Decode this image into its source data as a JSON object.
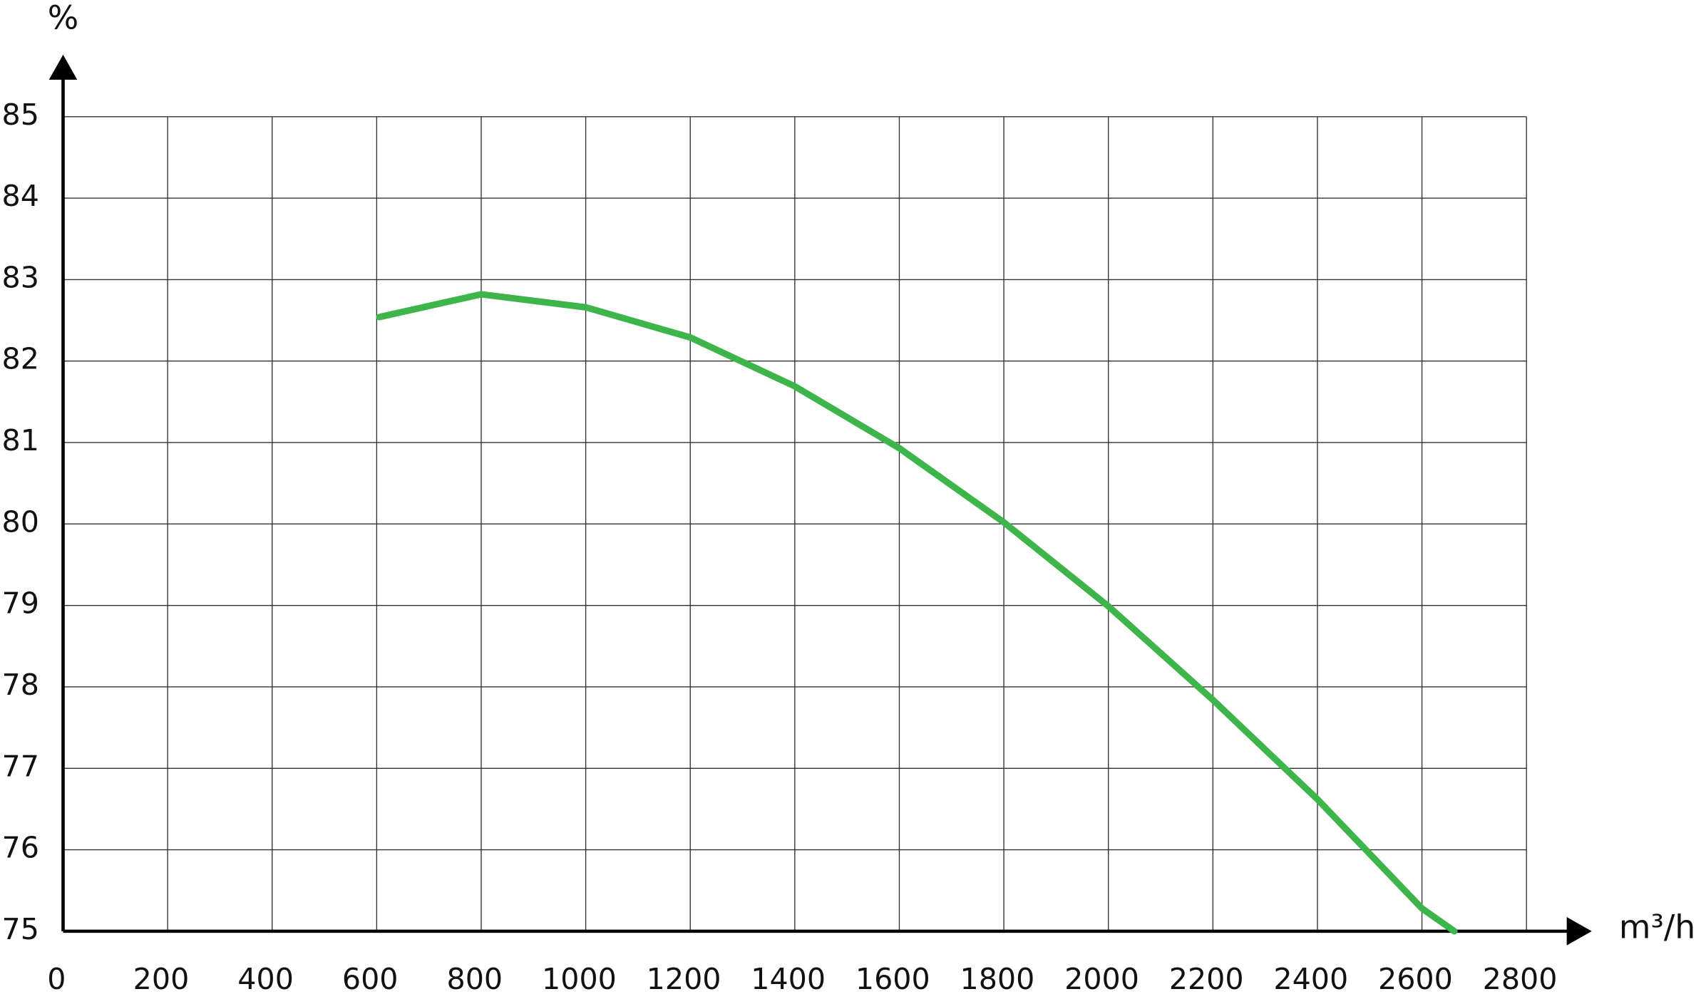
{
  "chart_data": {
    "type": "line",
    "y_label": "%",
    "x_label": "m³/h",
    "x": [
      605,
      800,
      1000,
      1200,
      1400,
      1600,
      1800,
      2000,
      2200,
      2400,
      2600,
      2662
    ],
    "series": [
      {
        "color": "#3db54a",
        "values": [
          82.54,
          82.82,
          82.66,
          82.29,
          81.69,
          80.93,
          80.02,
          78.99,
          77.84,
          76.62,
          75.28,
          75.0
        ]
      }
    ],
    "xlim": [
      0,
      2800
    ],
    "xticks": [
      0,
      200,
      400,
      600,
      800,
      1000,
      1200,
      1400,
      1600,
      1800,
      2000,
      2200,
      2400,
      2600,
      2800
    ],
    "ylim": [
      75,
      85
    ],
    "yticks": [
      75,
      76,
      77,
      78,
      79,
      80,
      81,
      82,
      83,
      84,
      85
    ],
    "grid": true
  }
}
